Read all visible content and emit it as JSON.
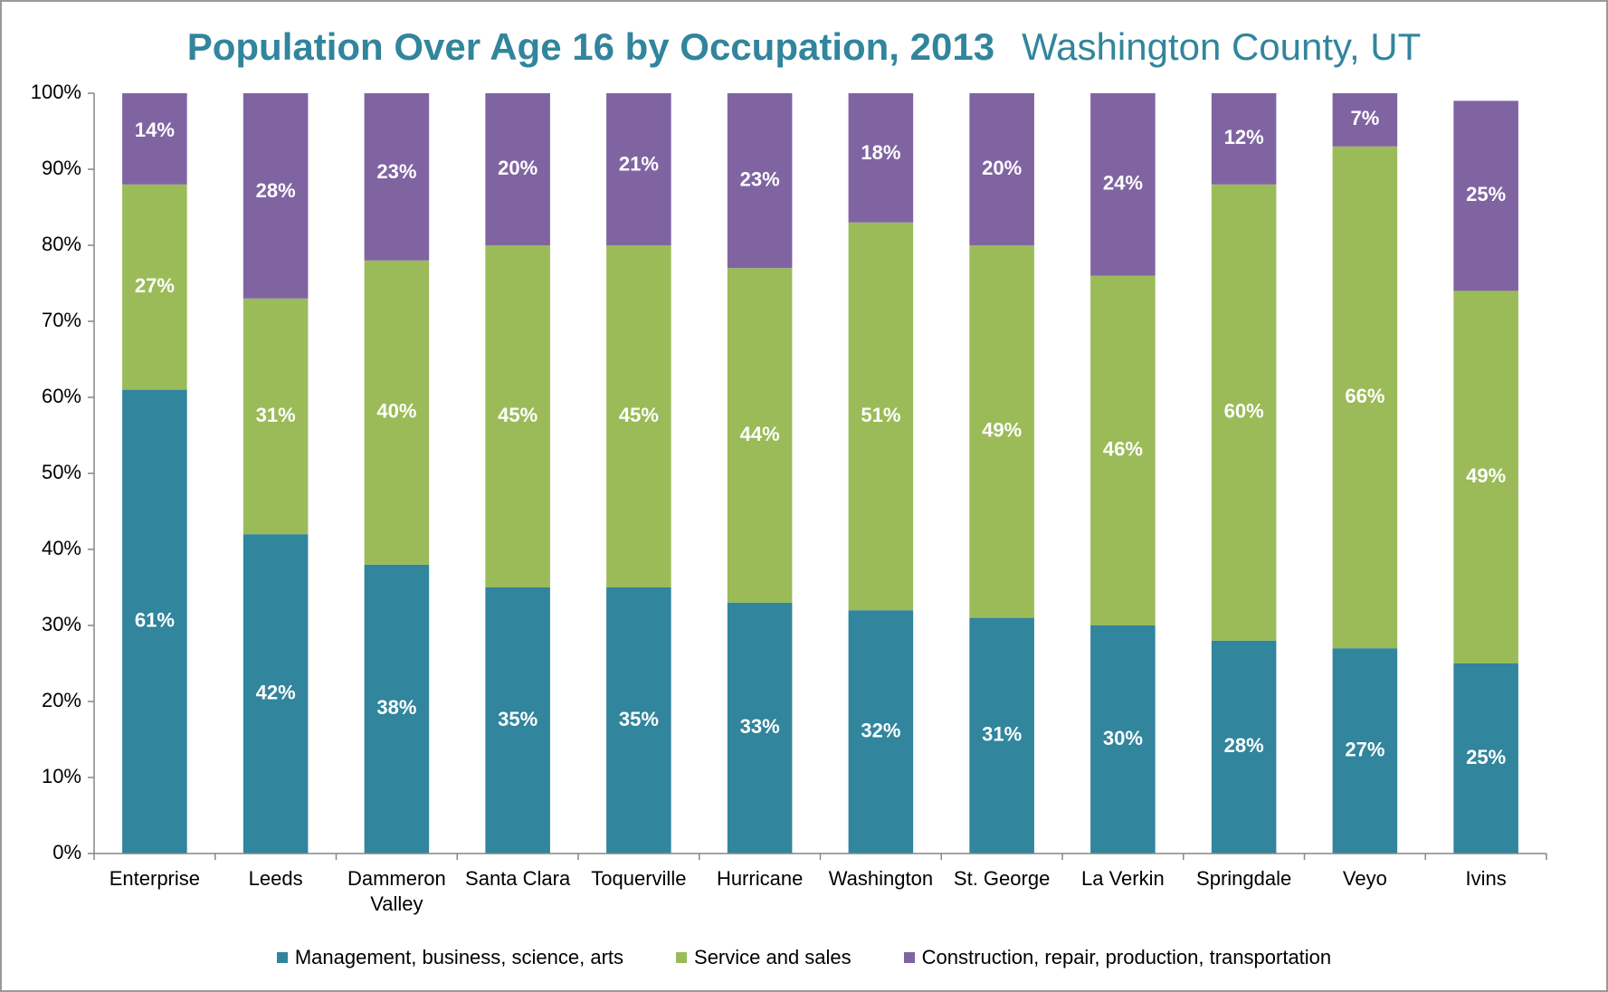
{
  "chart_data": {
    "type": "stacked_bar",
    "title": "Population Over Age 16 by Occupation, 2013",
    "subtitle": "Washington County, UT",
    "categories": [
      "Enterprise",
      "Leeds",
      "Dammeron Valley",
      "Santa Clara",
      "Toquerville",
      "Hurricane",
      "Washington",
      "St. George",
      "La Verkin",
      "Springdale",
      "Veyo",
      "Ivins"
    ],
    "series": [
      {
        "name": "Management, business, science, arts",
        "color": "#31859c",
        "values": [
          61,
          42,
          38,
          35,
          35,
          33,
          32,
          31,
          30,
          28,
          27,
          25
        ],
        "value_labels": [
          "61%",
          "42%",
          "38%",
          "35%",
          "35%",
          "33%",
          "32%",
          "31%",
          "30%",
          "28%",
          "27%",
          "25%"
        ]
      },
      {
        "name": "Service and sales",
        "color": "#9bbb59",
        "values": [
          27,
          31,
          40,
          45,
          45,
          44,
          51,
          49,
          46,
          60,
          66,
          49
        ],
        "value_labels": [
          "27%",
          "31%",
          "40%",
          "45%",
          "45%",
          "44%",
          "51%",
          "49%",
          "46%",
          "60%",
          "66%",
          "49%"
        ]
      },
      {
        "name": "Construction, repair, production, transportation",
        "color": "#8064a2",
        "values": [
          14,
          28,
          23,
          20,
          21,
          23,
          18,
          20,
          24,
          12,
          7,
          25
        ],
        "value_labels": [
          "14%",
          "28%",
          "23%",
          "20%",
          "21%",
          "23%",
          "18%",
          "20%",
          "24%",
          "12%",
          "7%",
          "25%"
        ]
      }
    ],
    "ylim": [
      0,
      100
    ],
    "yticks": [
      {
        "value": 0,
        "label": "0%"
      },
      {
        "value": 10,
        "label": "10%"
      },
      {
        "value": 20,
        "label": "20%"
      },
      {
        "value": 30,
        "label": "30%"
      },
      {
        "value": 40,
        "label": "40%"
      },
      {
        "value": 50,
        "label": "50%"
      },
      {
        "value": 60,
        "label": "60%"
      },
      {
        "value": 70,
        "label": "70%"
      },
      {
        "value": 80,
        "label": "80%"
      },
      {
        "value": 90,
        "label": "90%"
      },
      {
        "value": 100,
        "label": "100%"
      }
    ],
    "grid": false
  }
}
